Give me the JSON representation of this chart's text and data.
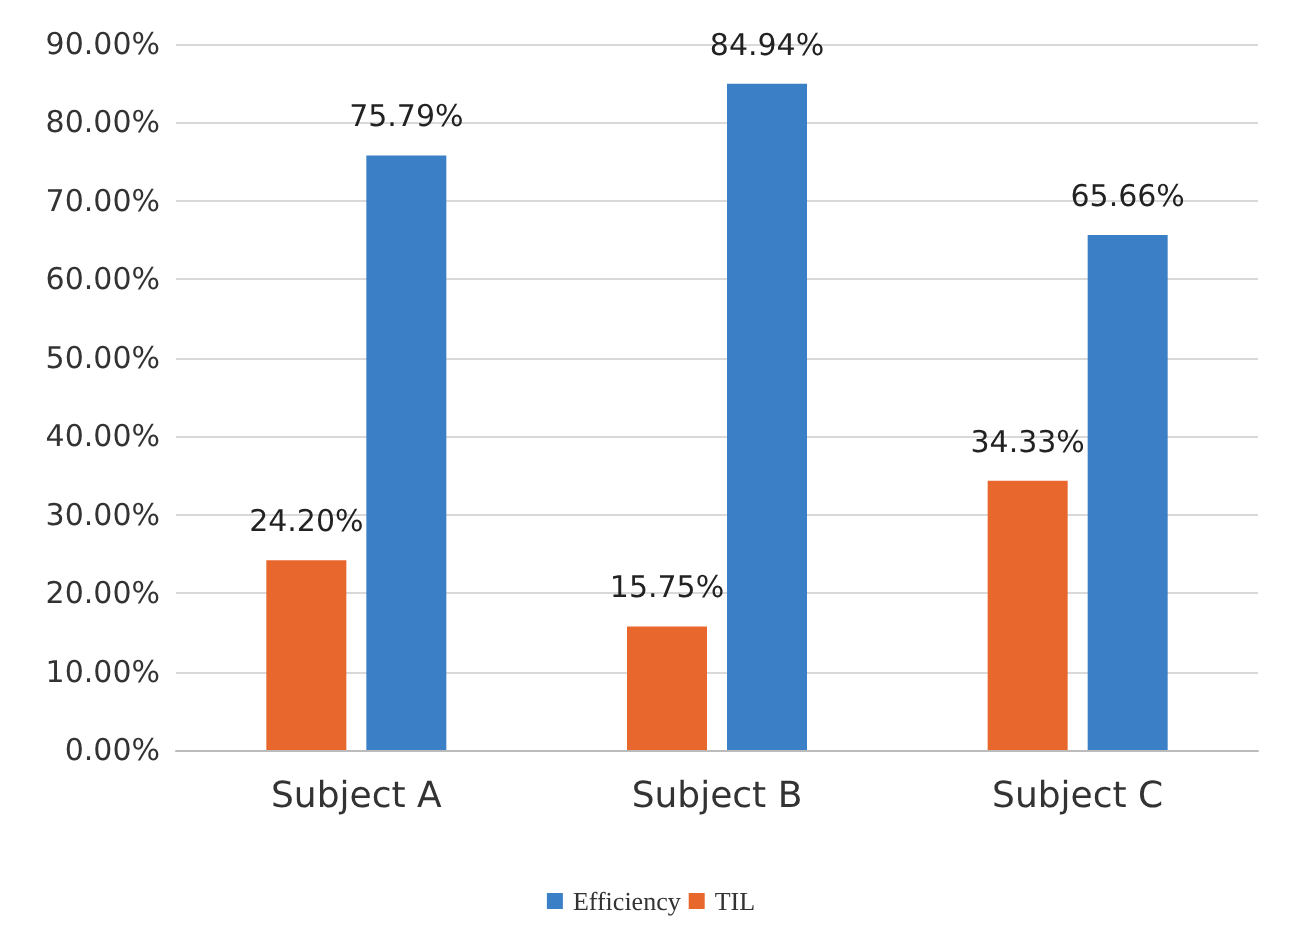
{
  "chart_data": {
    "type": "bar",
    "categories": [
      "Subject A",
      "Subject B",
      "Subject C"
    ],
    "series": [
      {
        "name": "TIL",
        "color": "#e8672c",
        "values": [
          24.2,
          15.75,
          34.33
        ],
        "value_labels": [
          "24.20%",
          "15.75%",
          "34.33%"
        ]
      },
      {
        "name": "Efficiency",
        "color": "#3b80c6",
        "values": [
          75.79,
          84.94,
          65.66
        ],
        "value_labels": [
          "75.79%",
          "84.94%",
          "65.66%"
        ]
      }
    ],
    "ylim": [
      0,
      90
    ],
    "yticks": [
      {
        "value": 0,
        "label": "0.00%"
      },
      {
        "value": 10,
        "label": "10.00%"
      },
      {
        "value": 20,
        "label": "20.00%"
      },
      {
        "value": 30,
        "label": "30.00%"
      },
      {
        "value": 40,
        "label": "40.00%"
      },
      {
        "value": 50,
        "label": "50.00%"
      },
      {
        "value": 60,
        "label": "60.00%"
      },
      {
        "value": 70,
        "label": "70.00%"
      },
      {
        "value": 80,
        "label": "80.00%"
      },
      {
        "value": 90,
        "label": "90.00%"
      }
    ],
    "grid": "y",
    "legend": "bottom"
  }
}
